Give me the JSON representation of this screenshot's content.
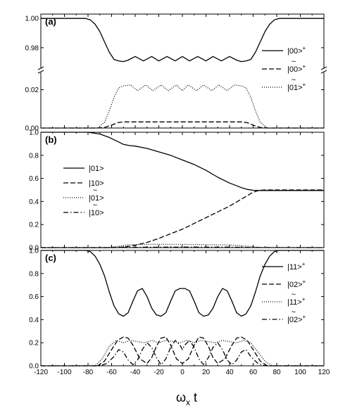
{
  "chart_data": {
    "type": "line",
    "xlabel": "ω",
    "xlabel_sub": "x",
    "xlabel_tail": " t",
    "xlim": [
      -120,
      120
    ],
    "xticks": [
      -120,
      -100,
      -80,
      -60,
      -40,
      -20,
      0,
      20,
      40,
      60,
      80,
      100,
      120
    ],
    "panels": [
      {
        "label": "(a)",
        "broken_axis": true,
        "upper_ylim": [
          0.966,
          1.002
        ],
        "upper_yticks": [
          "1.00",
          "0.98"
        ],
        "lower_ylim": [
          0,
          0.029
        ],
        "lower_yticks": [
          "0.02",
          "0.00"
        ],
        "legend_position": "right",
        "series": [
          {
            "name": "|00>",
            "sup": "+",
            "tilde": false,
            "style": "solid",
            "segment": "upper",
            "x": [
              -120,
              -82,
              -78,
              -74,
              -70,
              -66,
              -62,
              -58,
              -54,
              -50,
              -46,
              -40,
              -33,
              -26,
              -20,
              -13,
              -6,
              0,
              6,
              13,
              20,
              26,
              33,
              40,
              46,
              50,
              54,
              58,
              62,
              66,
              70,
              74,
              78,
              82,
              120
            ],
            "y": [
              1.0,
              1.0,
              0.999,
              0.996,
              0.991,
              0.984,
              0.977,
              0.972,
              0.971,
              0.9705,
              0.9715,
              0.974,
              0.971,
              0.974,
              0.971,
              0.974,
              0.971,
              0.974,
              0.971,
              0.974,
              0.971,
              0.974,
              0.971,
              0.974,
              0.9715,
              0.9705,
              0.971,
              0.972,
              0.977,
              0.984,
              0.991,
              0.996,
              0.999,
              1.0,
              1.0
            ]
          },
          {
            "name": "|00>",
            "sup": "+",
            "tilde": true,
            "style": "dashed",
            "segment": "lower",
            "x": [
              -120,
              -72,
              -66,
              -60,
              -55,
              -50,
              50,
              55,
              60,
              66,
              72,
              120
            ],
            "y": [
              0,
              0,
              0.0003,
              0.0015,
              0.0028,
              0.0032,
              0.0032,
              0.0028,
              0.0015,
              0.0003,
              0,
              0
            ]
          },
          {
            "name": "|01>",
            "sup": "+",
            "tilde": true,
            "style": "dotted",
            "segment": "lower",
            "x": [
              -120,
              -72,
              -66,
              -62,
              -58,
              -54,
              -50,
              -44,
              -38,
              -31,
              -25,
              -18,
              -12,
              -5,
              0,
              5,
              12,
              18,
              25,
              31,
              38,
              44,
              50,
              54,
              58,
              62,
              66,
              72,
              120
            ],
            "y": [
              0,
              0,
              0.003,
              0.009,
              0.016,
              0.021,
              0.022,
              0.0225,
              0.0195,
              0.0225,
              0.0195,
              0.0225,
              0.0195,
              0.0225,
              0.0195,
              0.0225,
              0.0195,
              0.0225,
              0.0195,
              0.0225,
              0.0195,
              0.0225,
              0.022,
              0.021,
              0.016,
              0.009,
              0.003,
              0,
              0
            ]
          }
        ]
      },
      {
        "label": "(b)",
        "ylim": [
          0,
          1.0
        ],
        "yticks": [
          "1.0",
          "0.8",
          "0.6",
          "0.4",
          "0.2",
          "0.0"
        ],
        "legend_position": "left",
        "series": [
          {
            "name": "|01>",
            "sup": "",
            "tilde": false,
            "style": "solid",
            "x": [
              -120,
              -80,
              -70,
              -62,
              -55,
              -50,
              -45,
              -40,
              -30,
              -20,
              -10,
              0,
              10,
              20,
              30,
              40,
              50,
              55,
              60,
              65,
              70,
              120
            ],
            "y": [
              1.0,
              1.0,
              0.985,
              0.955,
              0.92,
              0.895,
              0.885,
              0.88,
              0.86,
              0.83,
              0.8,
              0.76,
              0.72,
              0.67,
              0.61,
              0.56,
              0.52,
              0.505,
              0.497,
              0.495,
              0.495,
              0.495
            ]
          },
          {
            "name": "|10>",
            "sup": "",
            "tilde": false,
            "style": "dashed",
            "x": [
              -120,
              -60,
              -50,
              -40,
              -30,
              -20,
              -10,
              0,
              10,
              20,
              30,
              40,
              50,
              55,
              60,
              65,
              70,
              120
            ],
            "y": [
              0,
              0,
              0.005,
              0.02,
              0.045,
              0.08,
              0.12,
              0.16,
              0.21,
              0.26,
              0.31,
              0.36,
              0.42,
              0.45,
              0.48,
              0.497,
              0.5,
              0.5
            ]
          },
          {
            "name": "|01>",
            "sup": "",
            "tilde": true,
            "style": "dotted",
            "x": [
              -120,
              -65,
              -55,
              -45,
              -35,
              0,
              35,
              45,
              55,
              65,
              120
            ],
            "y": [
              0,
              0,
              0.01,
              0.025,
              0.028,
              0.028,
              0.024,
              0.02,
              0.012,
              0.002,
              0
            ]
          },
          {
            "name": "|10>",
            "sup": "",
            "tilde": true,
            "style": "dashdot",
            "x": [
              -120,
              -60,
              -40,
              0,
              40,
              60,
              120
            ],
            "y": [
              0,
              0,
              0.003,
              0.005,
              0.004,
              0.001,
              0
            ]
          }
        ]
      },
      {
        "label": "(c)",
        "ylim": [
          0,
          1.0
        ],
        "yticks": [
          "1.0",
          "0.8",
          "0.6",
          "0.4",
          "0.2",
          "0.0"
        ],
        "legend_position": "right",
        "series": [
          {
            "name": "|11>",
            "sup": "+",
            "tilde": false,
            "style": "solid",
            "x": [
              -120,
              -82,
              -78,
              -74,
              -70,
              -66,
              -62,
              -58,
              -54,
              -50,
              -46,
              -42,
              -38,
              -34,
              -30,
              -26,
              -22,
              -18,
              -14,
              -10,
              -6,
              -2,
              0,
              2,
              6,
              10,
              14,
              18,
              22,
              26,
              30,
              34,
              38,
              42,
              46,
              50,
              54,
              58,
              62,
              66,
              70,
              74,
              78,
              82,
              120
            ],
            "y": [
              1.0,
              1.0,
              0.99,
              0.95,
              0.88,
              0.78,
              0.64,
              0.52,
              0.45,
              0.43,
              0.46,
              0.56,
              0.65,
              0.67,
              0.6,
              0.5,
              0.44,
              0.43,
              0.46,
              0.56,
              0.65,
              0.67,
              0.67,
              0.67,
              0.65,
              0.56,
              0.46,
              0.43,
              0.44,
              0.5,
              0.6,
              0.67,
              0.65,
              0.56,
              0.46,
              0.43,
              0.45,
              0.52,
              0.64,
              0.78,
              0.88,
              0.95,
              0.99,
              1.0,
              1.0
            ]
          },
          {
            "name": "|02>",
            "sup": "+",
            "tilde": false,
            "style": "dashed",
            "x": [
              -120,
              -72,
              -66,
              -60,
              -55,
              -50,
              -46,
              -42,
              -36,
              -30,
              -26,
              -22,
              -18,
              -14,
              -10,
              -5,
              0,
              5,
              10,
              14,
              18,
              22,
              26,
              30,
              36,
              42,
              46,
              50,
              55,
              60,
              66,
              72,
              120
            ],
            "y": [
              0,
              0,
              0.04,
              0.14,
              0.22,
              0.25,
              0.24,
              0.18,
              0.06,
              0.02,
              0.07,
              0.17,
              0.24,
              0.25,
              0.18,
              0.06,
              0.02,
              0.06,
              0.18,
              0.25,
              0.24,
              0.17,
              0.07,
              0.02,
              0.06,
              0.18,
              0.24,
              0.25,
              0.22,
              0.14,
              0.04,
              0,
              0
            ]
          },
          {
            "name": "|11>",
            "sup": "+",
            "tilde": true,
            "style": "dotted",
            "x": [
              -120,
              -74,
              -68,
              -62,
              -56,
              -50,
              -44,
              -38,
              -32,
              -26,
              -20,
              -14,
              -8,
              -2,
              4,
              10,
              16,
              22,
              28,
              34,
              40,
              46,
              52,
              58,
              64,
              70,
              76,
              120
            ],
            "y": [
              0,
              0,
              0.06,
              0.17,
              0.22,
              0.2,
              0.22,
              0.21,
              0.2,
              0.22,
              0.2,
              0.22,
              0.21,
              0.2,
              0.22,
              0.2,
              0.22,
              0.21,
              0.2,
              0.22,
              0.21,
              0.2,
              0.22,
              0.2,
              0.12,
              0.04,
              0,
              0
            ]
          },
          {
            "name": "|02>",
            "sup": "+",
            "tilde": true,
            "style": "dashdot",
            "x": [
              -120,
              -70,
              -64,
              -58,
              -54,
              -50,
              -46,
              -42,
              -38,
              -34,
              -30,
              -26,
              -22,
              -18,
              -14,
              -10,
              -6,
              -2,
              0,
              2,
              6,
              10,
              14,
              18,
              22,
              26,
              30,
              34,
              38,
              42,
              46,
              50,
              54,
              58,
              64,
              70,
              120
            ],
            "y": [
              0,
              0,
              0.02,
              0.08,
              0.14,
              0.12,
              0.05,
              0.01,
              0.05,
              0.14,
              0.2,
              0.16,
              0.07,
              0.01,
              0.06,
              0.16,
              0.22,
              0.18,
              0.14,
              0.18,
              0.22,
              0.16,
              0.06,
              0.01,
              0.07,
              0.16,
              0.2,
              0.14,
              0.05,
              0.01,
              0.05,
              0.12,
              0.14,
              0.08,
              0.02,
              0,
              0
            ]
          }
        ]
      }
    ]
  }
}
